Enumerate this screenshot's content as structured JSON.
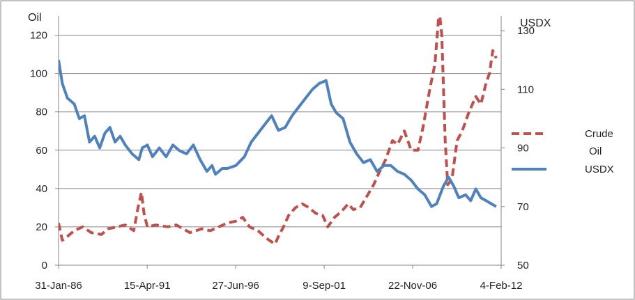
{
  "chart_data": {
    "type": "line",
    "left_axis_title": "Oil",
    "right_axis_title": "USDX",
    "left_ylim": [
      0,
      130
    ],
    "left_yticks": [
      0,
      20,
      40,
      60,
      80,
      100,
      120
    ],
    "right_ylim": [
      50,
      135
    ],
    "right_yticks": [
      50,
      70,
      90,
      110,
      130
    ],
    "x_tick_labels": [
      "31-Jan-86",
      "15-Apr-91",
      "27-Jun-96",
      "9-Sep-01",
      "22-Nov-06",
      "4-Feb-12"
    ],
    "x_tick_values": [
      1986.08,
      1991.29,
      1996.49,
      2001.69,
      2006.89,
      2012.09
    ],
    "xlim": [
      1986.08,
      2012.09
    ],
    "grid": "horizontal",
    "legend_position": "right",
    "series": [
      {
        "name": "Crude Oil",
        "axis": "left",
        "color": "#c0504d",
        "style": "dashed",
        "x": [
          1986.08,
          1986.3,
          1986.6,
          1987.0,
          1987.5,
          1988.0,
          1988.6,
          1989.0,
          1989.5,
          1990.0,
          1990.5,
          1990.75,
          1990.95,
          1991.1,
          1991.3,
          1991.8,
          1992.5,
          1993.0,
          1993.8,
          1994.5,
          1995.0,
          1995.5,
          1996.0,
          1996.5,
          1996.9,
          1997.3,
          1997.8,
          1998.3,
          1998.8,
          1999.0,
          1999.3,
          1999.6,
          2000.0,
          2000.4,
          2000.8,
          2001.2,
          2001.6,
          2001.9,
          2002.3,
          2002.7,
          2003.1,
          2003.4,
          2003.8,
          2004.2,
          2004.6,
          2004.9,
          2005.3,
          2005.7,
          2006.0,
          2006.4,
          2006.8,
          2007.2,
          2007.5,
          2007.9,
          2008.2,
          2008.45,
          2008.6,
          2008.8,
          2008.95,
          2009.2,
          2009.5,
          2009.8,
          2010.2,
          2010.6,
          2010.9,
          2011.2,
          2011.4,
          2011.6,
          2011.8
        ],
        "values": [
          22,
          13,
          15,
          18,
          20,
          17,
          16,
          19,
          20,
          21,
          18,
          30,
          38,
          27,
          20,
          21,
          20,
          21,
          17,
          19,
          18,
          20,
          22,
          23,
          25,
          20,
          18,
          14,
          11,
          15,
          20,
          26,
          30,
          32,
          30,
          27,
          26,
          20,
          25,
          28,
          32,
          29,
          30,
          36,
          42,
          48,
          55,
          65,
          63,
          70,
          60,
          60,
          72,
          92,
          105,
          133,
          120,
          65,
          42,
          45,
          65,
          70,
          80,
          88,
          84,
          95,
          100,
          112,
          108
        ]
      },
      {
        "name": "USDX",
        "axis": "right",
        "color": "#4f81bd",
        "style": "solid",
        "x": [
          1986.08,
          1986.3,
          1986.6,
          1987.0,
          1987.3,
          1987.6,
          1987.9,
          1988.2,
          1988.5,
          1988.8,
          1989.1,
          1989.4,
          1989.7,
          1990.0,
          1990.4,
          1990.8,
          1991.0,
          1991.3,
          1991.6,
          1992.0,
          1992.4,
          1992.8,
          1993.2,
          1993.6,
          1994.0,
          1994.4,
          1994.8,
          1995.1,
          1995.3,
          1995.7,
          1996.0,
          1996.5,
          1997.0,
          1997.4,
          1997.8,
          1998.2,
          1998.6,
          1999.0,
          1999.4,
          1999.8,
          2000.2,
          2000.6,
          2001.0,
          2001.4,
          2001.8,
          2002.1,
          2002.4,
          2002.8,
          2003.2,
          2003.6,
          2004.0,
          2004.4,
          2004.8,
          2005.2,
          2005.6,
          2006.0,
          2006.4,
          2006.8,
          2007.2,
          2007.6,
          2008.0,
          2008.3,
          2008.7,
          2009.0,
          2009.3,
          2009.6,
          2010.0,
          2010.3,
          2010.6,
          2010.9,
          2011.2,
          2011.5,
          2011.8
        ],
        "values": [
          120,
          112,
          107,
          105,
          100,
          101,
          92,
          94,
          90,
          95,
          97,
          92,
          94,
          91,
          88,
          86,
          90,
          91,
          87,
          90,
          87,
          91,
          89,
          88,
          91,
          86,
          82,
          84,
          81,
          83,
          83,
          84,
          87,
          92,
          95,
          98,
          101,
          96,
          97,
          101,
          104,
          107,
          110,
          112,
          113,
          105,
          102,
          100,
          92,
          88,
          85,
          86,
          82,
          84,
          84,
          82,
          81,
          79,
          76,
          74,
          70,
          71,
          77,
          80,
          77,
          73,
          74,
          72,
          76,
          73,
          72,
          71,
          70
        ]
      }
    ]
  }
}
